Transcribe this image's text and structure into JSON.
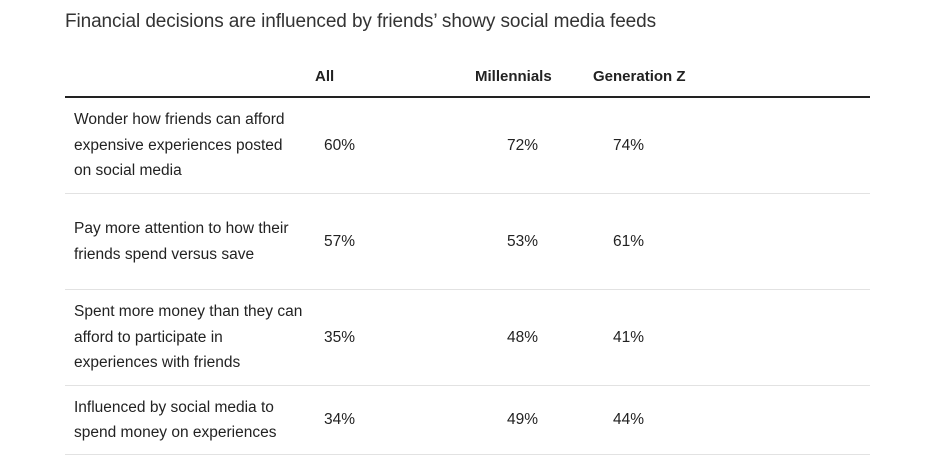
{
  "chart_data": {
    "type": "table",
    "title": "Financial decisions are influenced by friends’ showy social media feeds",
    "columns": [
      "All",
      "Millennials",
      "Generation Z"
    ],
    "rows": [
      {
        "label": "Wonder how friends can afford expensive experiences posted on social media",
        "values": [
          "60%",
          "72%",
          "74%"
        ]
      },
      {
        "label": "Pay more attention to how their friends spend versus save",
        "values": [
          "57%",
          "53%",
          "61%"
        ]
      },
      {
        "label": "Spent more money than they can afford to participate in experiences with friends",
        "values": [
          "35%",
          "48%",
          "41%"
        ]
      },
      {
        "label": "Influenced by social media to spend money on experiences",
        "values": [
          "34%",
          "49%",
          "44%"
        ]
      }
    ]
  }
}
